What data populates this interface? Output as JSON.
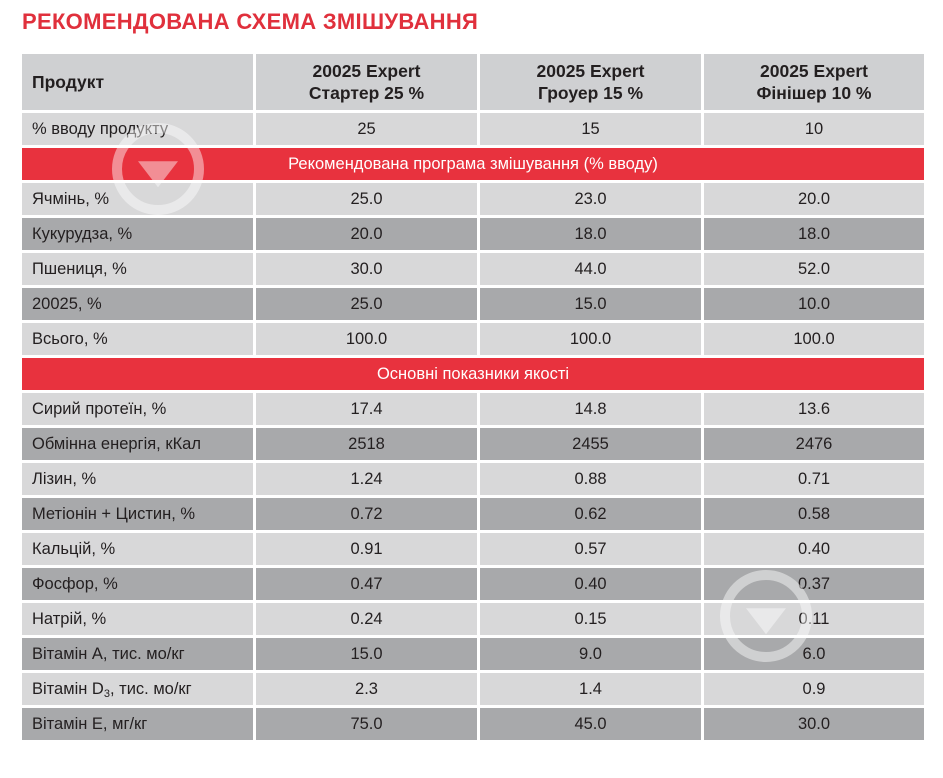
{
  "title": "РЕКОМЕНДОВАНА СХЕМА ЗМІШУВАННЯ",
  "header": {
    "product_label": "Продукт",
    "columns": [
      {
        "line1": "20025 Expert",
        "line2": "Стартер 25 %"
      },
      {
        "line1": "20025 Expert",
        "line2": "Гроуер 15 %"
      },
      {
        "line1": "20025 Expert",
        "line2": "Фінішер 10 %"
      }
    ]
  },
  "input_row": {
    "label": "% вводу продукту",
    "values": [
      "25",
      "15",
      "10"
    ]
  },
  "section1": {
    "title": "Рекомендована програма змішування (% вводу)",
    "rows": [
      {
        "label": "Ячмінь, %",
        "values": [
          "25.0",
          "23.0",
          "20.0"
        ]
      },
      {
        "label": "Кукурудза, %",
        "values": [
          "20.0",
          "18.0",
          "18.0"
        ]
      },
      {
        "label": "Пшениця, %",
        "values": [
          "30.0",
          "44.0",
          "52.0"
        ]
      },
      {
        "label": "20025, %",
        "values": [
          "25.0",
          "15.0",
          "10.0"
        ]
      },
      {
        "label": "Всього, %",
        "values": [
          "100.0",
          "100.0",
          "100.0"
        ]
      }
    ]
  },
  "section2": {
    "title": "Основні показники якості",
    "rows": [
      {
        "label": "Сирий протеїн, %",
        "values": [
          "17.4",
          "14.8",
          "13.6"
        ]
      },
      {
        "label": "Обмінна енергія, кКал",
        "values": [
          "2518",
          "2455",
          "2476"
        ]
      },
      {
        "label": "Лізин, %",
        "values": [
          "1.24",
          "0.88",
          "0.71"
        ]
      },
      {
        "label": "Метіонін + Цистин, %",
        "values": [
          "0.72",
          "0.62",
          "0.58"
        ]
      },
      {
        "label": "Кальцій, %",
        "values": [
          "0.91",
          "0.57",
          "0.40"
        ]
      },
      {
        "label": "Фосфор, %",
        "values": [
          "0.47",
          "0.40",
          "0.37"
        ]
      },
      {
        "label": "Натрій, %",
        "values": [
          "0.24",
          "0.15",
          "0.11"
        ]
      },
      {
        "label": "Вітамін А, тис. мо/кг",
        "values": [
          "15.0",
          "9.0",
          "6.0"
        ]
      },
      {
        "label_pre": "Вітамін D",
        "label_sub": "3",
        "label_post": ", тис. мо/кг",
        "values": [
          "2.3",
          "1.4",
          "0.9"
        ]
      },
      {
        "label": "Вітамін Е, мг/кг",
        "values": [
          "75.0",
          "45.0",
          "30.0"
        ]
      }
    ]
  },
  "colors": {
    "accent_red": "#e8323e",
    "title_red": "#e0303c",
    "row_light": "#d8d8d9",
    "row_dark": "#a8a9ab",
    "header_bg": "#cfd0d2"
  },
  "icons": [
    "watermark-logo-icon"
  ]
}
